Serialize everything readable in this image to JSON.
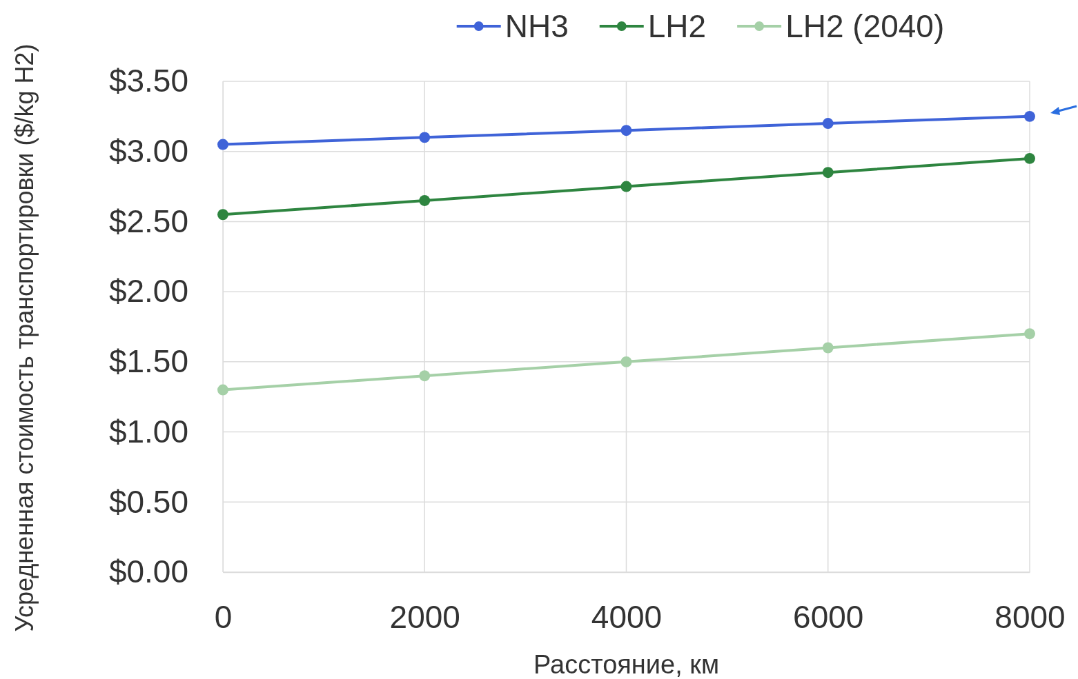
{
  "chart_data": {
    "type": "line",
    "xlabel": "Расстояние, км",
    "ylabel": "Усредненная стоимость транспортировки ($/kg H2)",
    "x": [
      0,
      2000,
      4000,
      6000,
      8000
    ],
    "series": [
      {
        "name": "NH3",
        "color": "#3f63d8",
        "values": [
          3.05,
          3.1,
          3.15,
          3.2,
          3.25
        ]
      },
      {
        "name": "LH2",
        "color": "#2e8540",
        "values": [
          2.55,
          2.65,
          2.75,
          2.85,
          2.95
        ]
      },
      {
        "name": "LH2 (2040)",
        "color": "#a5d0a7",
        "values": [
          1.3,
          1.4,
          1.5,
          1.6,
          1.7
        ]
      }
    ],
    "xlim": [
      0,
      8000
    ],
    "xticks": [
      0,
      2000,
      4000,
      6000,
      8000
    ],
    "ylim": [
      0,
      3.5
    ],
    "yticks": [
      {
        "value": 0,
        "label": "$0.00"
      },
      {
        "value": 0.5,
        "label": "$0.50"
      },
      {
        "value": 1,
        "label": "$1.00"
      },
      {
        "value": 1.5,
        "label": "$1.50"
      },
      {
        "value": 2,
        "label": "$2.00"
      },
      {
        "value": 2.5,
        "label": "$2.50"
      },
      {
        "value": 3,
        "label": "$3.00"
      },
      {
        "value": 3.5,
        "label": "$3.50"
      }
    ],
    "grid": true,
    "legend": "top",
    "marker": "circle",
    "line_style": "solid"
  }
}
